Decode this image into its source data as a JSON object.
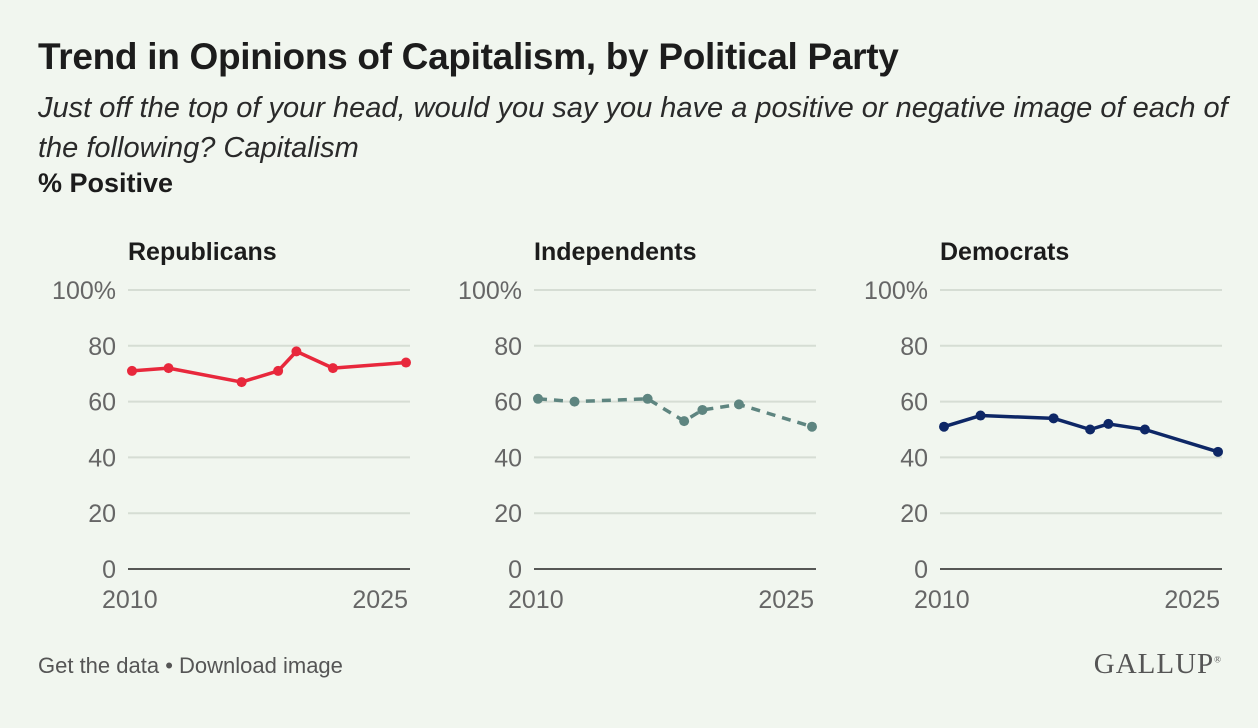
{
  "title": "Trend in Opinions of Capitalism, by Political Party",
  "subtitle": "Just off the top of your head, would you say you have a positive or negative image of each of the following? Capitalism",
  "measure": "% Positive",
  "footer": {
    "get_data": "Get the data",
    "separator": " • ",
    "download": "Download image"
  },
  "logo": "GALLUP",
  "chart_data": [
    {
      "type": "line",
      "title": "Republicans",
      "color": "#e8283c",
      "dashed": false,
      "x": [
        2010,
        2012,
        2016,
        2018,
        2019,
        2021,
        2025
      ],
      "values": [
        71,
        72,
        67,
        71,
        78,
        72,
        74
      ],
      "ylim": [
        0,
        100
      ],
      "yticks": [
        "100%",
        "80",
        "60",
        "40",
        "20",
        "0"
      ],
      "xticks": [
        "2010",
        "2025"
      ],
      "grid": true
    },
    {
      "type": "line",
      "title": "Independents",
      "color": "#5e8580",
      "dashed": true,
      "x": [
        2010,
        2012,
        2016,
        2018,
        2019,
        2021,
        2025
      ],
      "values": [
        61,
        60,
        61,
        53,
        57,
        59,
        51
      ],
      "ylim": [
        0,
        100
      ],
      "yticks": [
        "100%",
        "80",
        "60",
        "40",
        "20",
        "0"
      ],
      "xticks": [
        "2010",
        "2025"
      ],
      "grid": true
    },
    {
      "type": "line",
      "title": "Democrats",
      "color": "#0e2766",
      "dashed": false,
      "x": [
        2010,
        2012,
        2016,
        2018,
        2019,
        2021,
        2025
      ],
      "values": [
        51,
        55,
        54,
        50,
        52,
        50,
        42
      ],
      "ylim": [
        0,
        100
      ],
      "yticks": [
        "100%",
        "80",
        "60",
        "40",
        "20",
        "0"
      ],
      "xticks": [
        "2010",
        "2025"
      ],
      "grid": true
    }
  ]
}
